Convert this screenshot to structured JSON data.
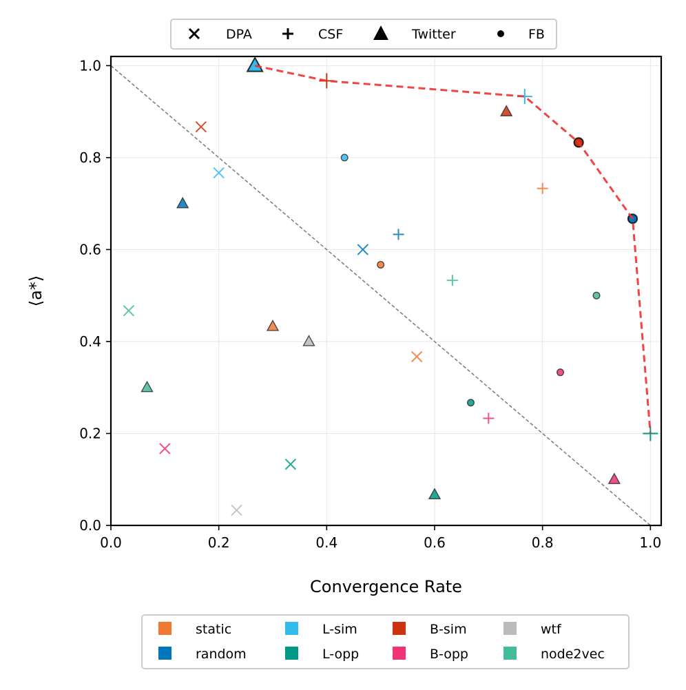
{
  "chart_data": {
    "type": "scatter",
    "xlabel": "Convergence Rate",
    "ylabel": "⟨a*⟩",
    "xlim": [
      0.0,
      1.02
    ],
    "ylim": [
      0.0,
      1.02
    ],
    "xticks": [
      "0.0",
      "0.2",
      "0.4",
      "0.6",
      "0.8",
      "1.0"
    ],
    "yticks": [
      "0.0",
      "0.2",
      "0.4",
      "0.6",
      "0.8",
      "1.0"
    ],
    "xtick_values": [
      0.0,
      0.2,
      0.4,
      0.6,
      0.8,
      1.0
    ],
    "ytick_values": [
      0.0,
      0.2,
      0.4,
      0.6,
      0.8,
      1.0
    ],
    "grid": true,
    "reference_line": {
      "from": [
        0.0,
        1.0
      ],
      "to": [
        1.0,
        0.0
      ],
      "style": "dashed",
      "color": "#808080"
    },
    "pareto_front": {
      "color": "#f03030",
      "style": "dashed",
      "points": [
        [
          0.267,
          1.0
        ],
        [
          0.4,
          0.967
        ],
        [
          0.767,
          0.933
        ],
        [
          0.867,
          0.833
        ],
        [
          0.967,
          0.667
        ],
        [
          1.0,
          0.2
        ]
      ]
    },
    "marker_legend": {
      "position": "top",
      "entries": [
        {
          "label": "DPA",
          "marker": "x"
        },
        {
          "label": "CSF",
          "marker": "plus"
        },
        {
          "label": "Twitter",
          "marker": "triangle"
        },
        {
          "label": "FB",
          "marker": "circle"
        }
      ]
    },
    "color_legend": {
      "position": "bottom",
      "entries": [
        {
          "label": "static",
          "color": "#ee7733"
        },
        {
          "label": "L-sim",
          "color": "#33bbee"
        },
        {
          "label": "B-sim",
          "color": "#cc3311"
        },
        {
          "label": "wtf",
          "color": "#bbbbbb"
        },
        {
          "label": "random",
          "color": "#0077bb"
        },
        {
          "label": "L-opp",
          "color": "#009988"
        },
        {
          "label": "B-opp",
          "color": "#ee3377"
        },
        {
          "label": "node2vec",
          "color": "#44bb99"
        }
      ]
    },
    "series": [
      {
        "name": "DPA",
        "marker": "x",
        "points": [
          {
            "x": 0.167,
            "y": 0.867,
            "method": "B-sim"
          },
          {
            "x": 0.2,
            "y": 0.767,
            "method": "L-sim"
          },
          {
            "x": 0.467,
            "y": 0.6,
            "method": "random"
          },
          {
            "x": 0.033,
            "y": 0.467,
            "method": "node2vec"
          },
          {
            "x": 0.567,
            "y": 0.367,
            "method": "static"
          },
          {
            "x": 0.1,
            "y": 0.167,
            "method": "B-opp"
          },
          {
            "x": 0.333,
            "y": 0.133,
            "method": "L-opp"
          },
          {
            "x": 0.233,
            "y": 0.033,
            "method": "wtf"
          }
        ]
      },
      {
        "name": "CSF",
        "marker": "plus",
        "points": [
          {
            "x": 0.4,
            "y": 0.967,
            "method": "B-sim",
            "pareto": true
          },
          {
            "x": 0.767,
            "y": 0.933,
            "method": "L-sim",
            "pareto": true
          },
          {
            "x": 0.8,
            "y": 0.733,
            "method": "static"
          },
          {
            "x": 0.533,
            "y": 0.633,
            "method": "random"
          },
          {
            "x": 0.633,
            "y": 0.533,
            "method": "node2vec"
          },
          {
            "x": 0.7,
            "y": 0.233,
            "method": "B-opp"
          },
          {
            "x": 1.0,
            "y": 0.2,
            "method": "L-opp",
            "pareto": true
          }
        ]
      },
      {
        "name": "Twitter",
        "marker": "triangle",
        "points": [
          {
            "x": 0.267,
            "y": 1.0,
            "method": "L-sim",
            "pareto": true
          },
          {
            "x": 0.733,
            "y": 0.9,
            "method": "B-sim"
          },
          {
            "x": 0.133,
            "y": 0.7,
            "method": "random"
          },
          {
            "x": 0.3,
            "y": 0.433,
            "method": "static"
          },
          {
            "x": 0.367,
            "y": 0.4,
            "method": "wtf"
          },
          {
            "x": 0.067,
            "y": 0.3,
            "method": "node2vec"
          },
          {
            "x": 0.6,
            "y": 0.067,
            "method": "L-opp"
          },
          {
            "x": 0.933,
            "y": 0.1,
            "method": "B-opp"
          }
        ]
      },
      {
        "name": "FB",
        "marker": "circle",
        "points": [
          {
            "x": 0.867,
            "y": 0.833,
            "method": "B-sim",
            "pareto": true
          },
          {
            "x": 0.433,
            "y": 0.8,
            "method": "L-sim"
          },
          {
            "x": 0.967,
            "y": 0.667,
            "method": "random",
            "pareto": true
          },
          {
            "x": 0.5,
            "y": 0.567,
            "method": "static"
          },
          {
            "x": 0.9,
            "y": 0.5,
            "method": "node2vec"
          },
          {
            "x": 0.833,
            "y": 0.333,
            "method": "B-opp"
          },
          {
            "x": 0.667,
            "y": 0.267,
            "method": "L-opp"
          }
        ]
      }
    ]
  }
}
